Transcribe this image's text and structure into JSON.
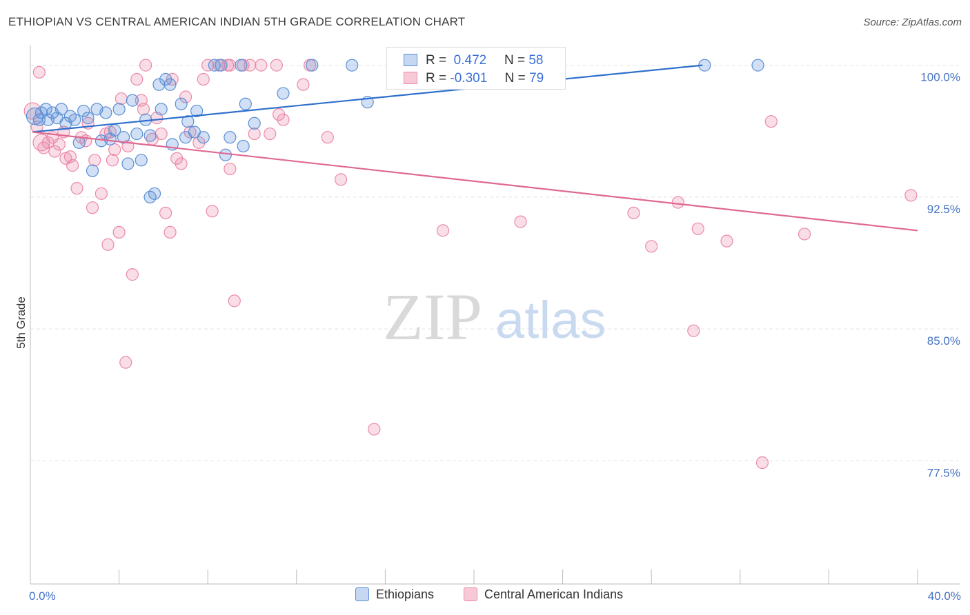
{
  "title": "ETHIOPIAN VS CENTRAL AMERICAN INDIAN 5TH GRADE CORRELATION CHART",
  "source": "Source: ZipAtlas.com",
  "watermark": {
    "zip": "ZIP",
    "atlas": "atlas"
  },
  "legend": {
    "series1": {
      "r_label": "R =",
      "r_value": "0.472",
      "n_label": "N =",
      "n_value": "58"
    },
    "series2": {
      "r_label": "R =",
      "r_value": "-0.301",
      "n_label": "N =",
      "n_value": "79"
    }
  },
  "colors": {
    "blue": "#5b8fd6",
    "blue_line": "#2f6fcc",
    "pink": "#eb8aa8",
    "pink_line": "#e06890"
  },
  "chart_data": {
    "type": "scatter",
    "ylabel": "5th Grade",
    "xlim": [
      0,
      40
    ],
    "ylim": [
      70.5,
      101.2
    ],
    "x_tick_labels": [
      "0.0%",
      "40.0%"
    ],
    "y_ticks": [
      {
        "value": 100,
        "label": "100.0%"
      },
      {
        "value": 92.5,
        "label": "92.5%"
      },
      {
        "value": 85,
        "label": "85.0%"
      },
      {
        "value": 77.5,
        "label": "77.5%"
      }
    ],
    "series": [
      {
        "name": "Ethiopians",
        "trend": [
          [
            0.1,
            96.2
          ],
          [
            30.3,
            100.0
          ]
        ],
        "points": [
          [
            0.2,
            97.1
          ],
          [
            0.4,
            96.9
          ],
          [
            0.5,
            97.3
          ],
          [
            0.7,
            97.5
          ],
          [
            0.8,
            96.9
          ],
          [
            1.0,
            97.3
          ],
          [
            1.2,
            97.0
          ],
          [
            1.4,
            97.5
          ],
          [
            1.6,
            96.7
          ],
          [
            1.8,
            97.1
          ],
          [
            2.0,
            96.9
          ],
          [
            2.2,
            95.6
          ],
          [
            2.4,
            97.4
          ],
          [
            2.6,
            97.0
          ],
          [
            2.8,
            94.0
          ],
          [
            3.0,
            97.5
          ],
          [
            3.2,
            95.7
          ],
          [
            3.4,
            97.3
          ],
          [
            3.6,
            95.8
          ],
          [
            3.8,
            96.3
          ],
          [
            4.0,
            97.5
          ],
          [
            4.2,
            95.9
          ],
          [
            4.4,
            94.4
          ],
          [
            4.6,
            98.0
          ],
          [
            4.8,
            96.1
          ],
          [
            5.0,
            94.6
          ],
          [
            5.2,
            96.9
          ],
          [
            5.4,
            96.0
          ],
          [
            5.4,
            92.5
          ],
          [
            5.6,
            92.7
          ],
          [
            5.8,
            98.9
          ],
          [
            5.9,
            97.5
          ],
          [
            6.1,
            99.2
          ],
          [
            6.3,
            98.9
          ],
          [
            6.4,
            95.5
          ],
          [
            6.8,
            97.8
          ],
          [
            7.0,
            95.9
          ],
          [
            7.1,
            96.8
          ],
          [
            7.4,
            96.2
          ],
          [
            7.5,
            97.4
          ],
          [
            7.8,
            95.9
          ],
          [
            8.3,
            100.0
          ],
          [
            8.6,
            100.0
          ],
          [
            8.8,
            94.9
          ],
          [
            9.0,
            95.9
          ],
          [
            9.5,
            100.0
          ],
          [
            9.6,
            95.4
          ],
          [
            9.7,
            97.8
          ],
          [
            10.1,
            96.7
          ],
          [
            11.4,
            98.4
          ],
          [
            12.7,
            100.0
          ],
          [
            14.5,
            100.0
          ],
          [
            15.2,
            97.9
          ],
          [
            16.8,
            100.0
          ],
          [
            18.6,
            100.0
          ],
          [
            21.8,
            100.0
          ],
          [
            30.4,
            100.0
          ],
          [
            32.8,
            100.0
          ]
        ]
      },
      {
        "name": "Central American Indians",
        "trend": [
          [
            0.1,
            96.2
          ],
          [
            40.0,
            90.6
          ]
        ],
        "points": [
          [
            0.1,
            97.4
          ],
          [
            0.3,
            96.5
          ],
          [
            0.5,
            95.6
          ],
          [
            0.6,
            95.3
          ],
          [
            0.8,
            95.6
          ],
          [
            1.0,
            95.9
          ],
          [
            1.1,
            95.1
          ],
          [
            1.3,
            95.5
          ],
          [
            1.5,
            96.2
          ],
          [
            1.6,
            94.7
          ],
          [
            1.8,
            94.8
          ],
          [
            1.9,
            94.3
          ],
          [
            2.1,
            93.0
          ],
          [
            2.3,
            95.9
          ],
          [
            2.5,
            95.7
          ],
          [
            2.6,
            96.7
          ],
          [
            2.8,
            91.9
          ],
          [
            2.9,
            94.6
          ],
          [
            3.2,
            92.7
          ],
          [
            3.4,
            96.1
          ],
          [
            3.5,
            89.8
          ],
          [
            3.6,
            96.2
          ],
          [
            3.7,
            94.6
          ],
          [
            3.8,
            95.2
          ],
          [
            4.0,
            90.5
          ],
          [
            4.1,
            98.1
          ],
          [
            4.3,
            83.1
          ],
          [
            4.4,
            95.4
          ],
          [
            4.6,
            88.1
          ],
          [
            4.8,
            99.2
          ],
          [
            5.0,
            98.0
          ],
          [
            5.1,
            97.5
          ],
          [
            5.2,
            100.0
          ],
          [
            5.5,
            95.8
          ],
          [
            5.7,
            97.0
          ],
          [
            5.9,
            96.1
          ],
          [
            6.1,
            91.6
          ],
          [
            6.3,
            90.5
          ],
          [
            6.4,
            99.2
          ],
          [
            6.6,
            94.7
          ],
          [
            6.8,
            94.4
          ],
          [
            7.0,
            98.2
          ],
          [
            7.2,
            96.2
          ],
          [
            7.6,
            95.6
          ],
          [
            7.8,
            99.2
          ],
          [
            8.0,
            100.0
          ],
          [
            8.2,
            91.7
          ],
          [
            8.5,
            100.0
          ],
          [
            8.9,
            100.0
          ],
          [
            9.0,
            100.0
          ],
          [
            9.0,
            94.1
          ],
          [
            9.2,
            86.6
          ],
          [
            9.6,
            100.0
          ],
          [
            9.9,
            100.0
          ],
          [
            10.1,
            96.1
          ],
          [
            10.4,
            100.0
          ],
          [
            10.8,
            96.1
          ],
          [
            11.1,
            100.0
          ],
          [
            11.2,
            97.2
          ],
          [
            11.4,
            96.9
          ],
          [
            12.3,
            98.9
          ],
          [
            12.6,
            100.0
          ],
          [
            13.4,
            95.9
          ],
          [
            14.0,
            93.5
          ],
          [
            15.5,
            79.3
          ],
          [
            18.6,
            90.6
          ],
          [
            22.1,
            91.1
          ],
          [
            27.2,
            91.6
          ],
          [
            28.0,
            89.7
          ],
          [
            29.2,
            92.2
          ],
          [
            29.9,
            84.9
          ],
          [
            30.1,
            90.7
          ],
          [
            31.4,
            90.0
          ],
          [
            33.0,
            77.4
          ],
          [
            33.4,
            96.8
          ],
          [
            34.9,
            90.4
          ],
          [
            39.7,
            92.6
          ],
          [
            0.4,
            99.6
          ],
          [
            20.8,
            100.0
          ]
        ]
      }
    ]
  }
}
